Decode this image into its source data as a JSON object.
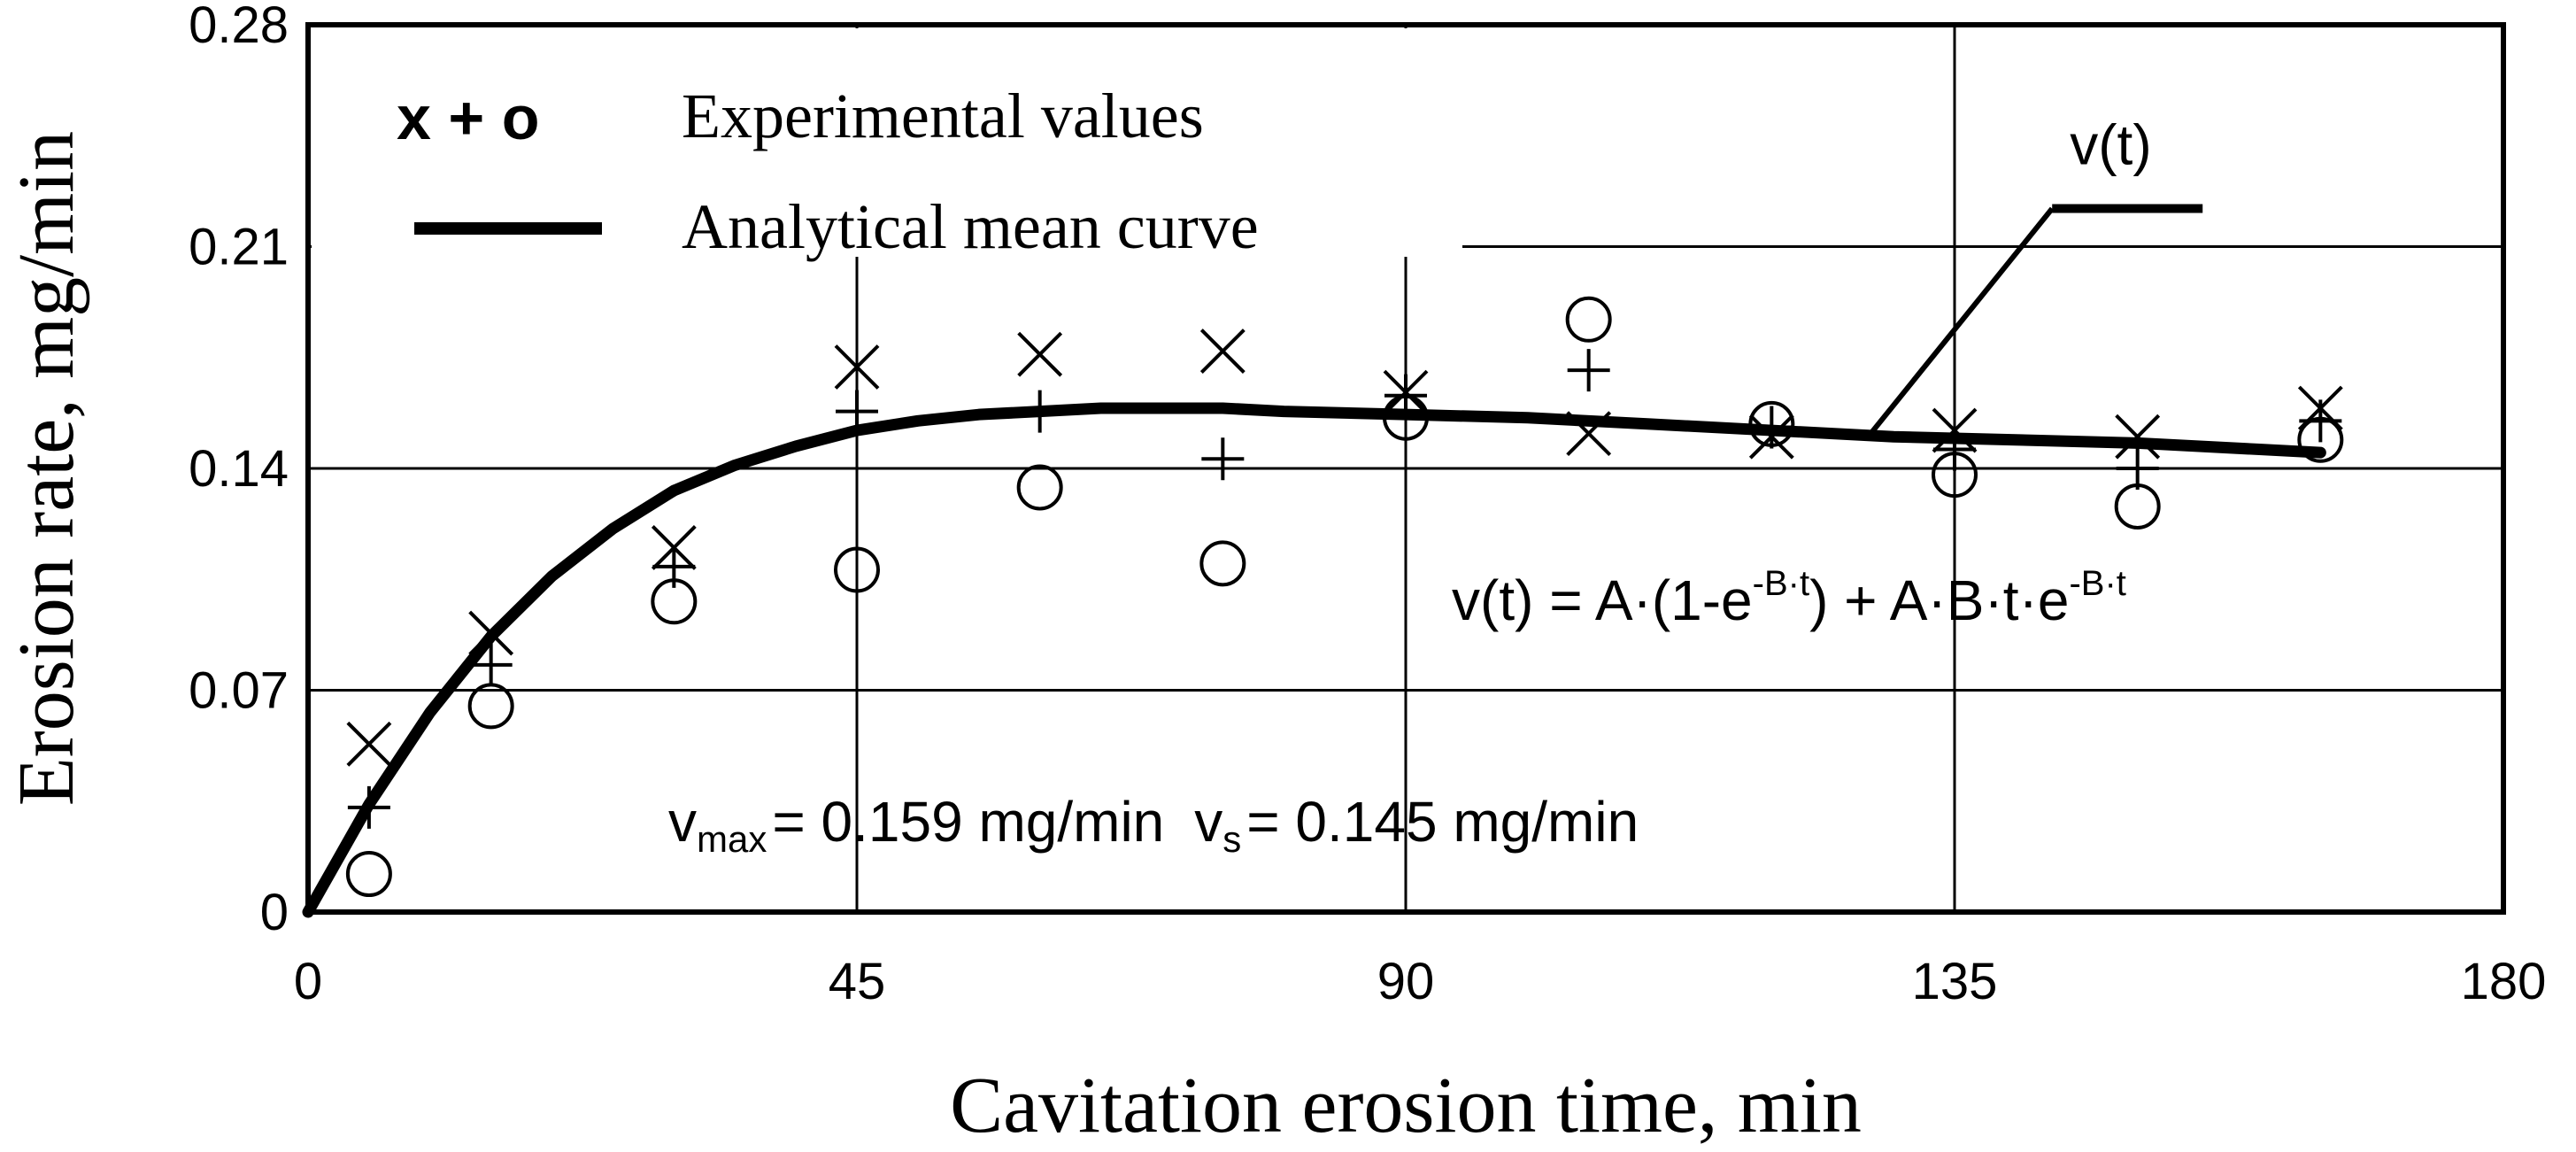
{
  "chart_data": {
    "type": "scatter",
    "xlabel": "Cavitation erosion time, min",
    "ylabel": "Erosion rate, mg/min",
    "xlim": [
      0,
      180
    ],
    "ylim": [
      0,
      0.28
    ],
    "x_ticks": [
      "0",
      "45",
      "90",
      "135",
      "180"
    ],
    "y_ticks": [
      "0",
      "0.07",
      "0.14",
      "0.21",
      "0.28"
    ],
    "x_tick_values": [
      0,
      45,
      90,
      135,
      180
    ],
    "y_tick_values": [
      0,
      0.07,
      0.14,
      0.21,
      0.28
    ],
    "grid": true,
    "legend": {
      "position": "top-left",
      "markers_label": "x + o",
      "markers": [
        "×",
        "+",
        "o"
      ],
      "experimental_label": "Experimental values",
      "curve_label": "Analytical mean curve"
    },
    "series": [
      {
        "name": "Experimental x",
        "marker": "x",
        "x": [
          5,
          15,
          30,
          45,
          60,
          75,
          90,
          105,
          120,
          135,
          150,
          165
        ],
        "y": [
          0.053,
          0.088,
          0.115,
          0.172,
          0.176,
          0.177,
          0.164,
          0.151,
          0.15,
          0.152,
          0.15,
          0.159
        ]
      },
      {
        "name": "Experimental +",
        "marker": "+",
        "x": [
          5,
          15,
          30,
          45,
          60,
          75,
          90,
          105,
          120,
          135,
          150,
          165
        ],
        "y": [
          0.033,
          0.078,
          0.109,
          0.158,
          0.158,
          0.143,
          0.163,
          0.171,
          0.153,
          0.146,
          0.14,
          0.155
        ]
      },
      {
        "name": "Experimental o",
        "marker": "o",
        "x": [
          5,
          15,
          30,
          45,
          60,
          75,
          90,
          105,
          120,
          135,
          150,
          165
        ],
        "y": [
          0.012,
          0.065,
          0.098,
          0.108,
          0.134,
          0.11,
          0.156,
          0.187,
          0.154,
          0.138,
          0.128,
          0.149
        ]
      },
      {
        "name": "Analytical mean curve",
        "marker": "line",
        "x": [
          0,
          5,
          10,
          15,
          20,
          25,
          30,
          35,
          40,
          45,
          50,
          55,
          60,
          65,
          70,
          75,
          80,
          90,
          100,
          110,
          120,
          130,
          140,
          150,
          160,
          165
        ],
        "y": [
          0,
          0.034,
          0.063,
          0.087,
          0.106,
          0.121,
          0.133,
          0.141,
          0.147,
          0.152,
          0.155,
          0.157,
          0.158,
          0.159,
          0.159,
          0.159,
          0.158,
          0.157,
          0.156,
          0.154,
          0.152,
          0.15,
          0.149,
          0.148,
          0.146,
          0.145
        ]
      }
    ],
    "annotations": {
      "curve_label": "v(t)",
      "curve_label_x": 143,
      "curve_label_y": 0.222,
      "formula": {
        "lhs": "v(t) = A·(1-e",
        "exp1": "-B·t",
        "mid": ") + A·B·t·e",
        "exp2": "-B·t"
      },
      "values": {
        "vmax_symbol": "v",
        "vmax_sub": "max",
        "vmax_text": "= 0.159 mg/min",
        "vs_symbol": "v",
        "vs_sub": "s",
        "vs_text": "= 0.145 mg/min"
      }
    }
  }
}
